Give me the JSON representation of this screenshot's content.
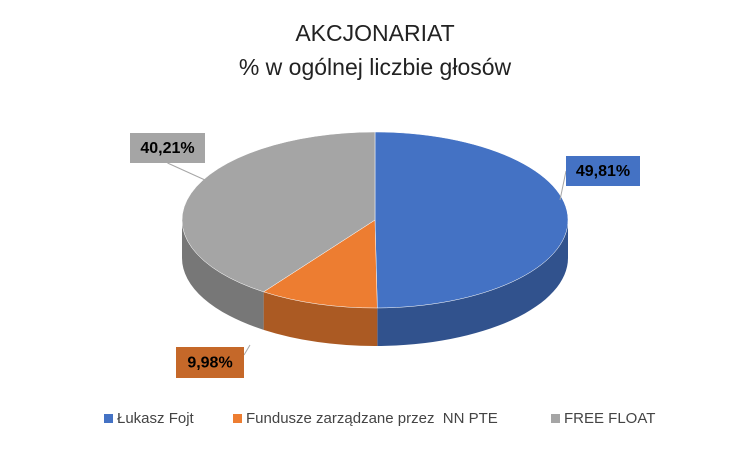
{
  "chart_data": {
    "type": "pie",
    "title": "AKCJONARIAT",
    "subtitle": "% w ogólnej liczbie głosów",
    "categories": [
      "Łukasz Fojt",
      "Fundusze zarządzane przez  NN PTE",
      "FREE FLOAT"
    ],
    "values": [
      49.81,
      9.98,
      40.21
    ],
    "value_labels": [
      "49,81%",
      "9,98%",
      "40,21%"
    ],
    "colors": [
      "#4472c4",
      "#ed7d31",
      "#a5a5a5"
    ],
    "legend": "bottom"
  }
}
